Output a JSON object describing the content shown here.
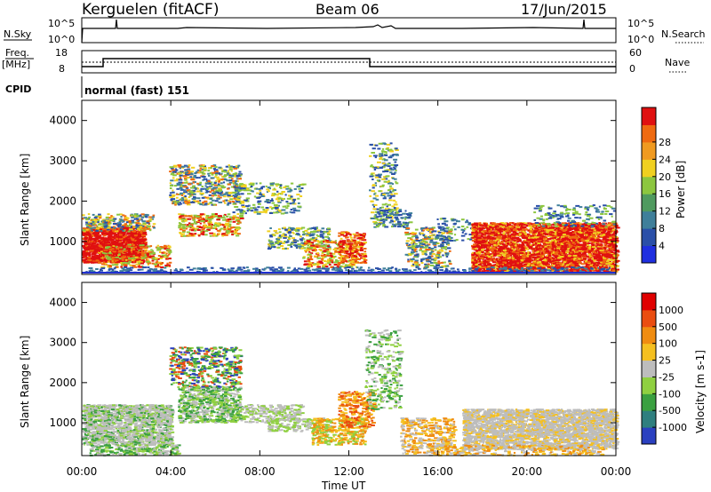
{
  "header": {
    "station": "Kerguelen (fitACF)",
    "beam": "Beam 06",
    "date": "17/Jun/2015"
  },
  "top_panels": {
    "nsky_label": "N.Sky",
    "nsky_ticks": [
      "10^5",
      "10^0"
    ],
    "nsearch_label": "N.Search",
    "nsearch_ticks": [
      "10^5",
      "10^0"
    ],
    "freq_label_1": "Freq.",
    "freq_label_2": "[MHz]",
    "freq_ticks": [
      "18",
      "8"
    ],
    "nave_label": "Nave",
    "nave_ticks": [
      "60",
      "0"
    ],
    "cpid_label": "CPID",
    "cpid_value": "normal (fast) 151"
  },
  "chart_data": [
    {
      "type": "heatmap",
      "title": "",
      "ylabel": "Slant Range [km]",
      "ylim": [
        180,
        4500
      ],
      "yticks": [
        "1000",
        "2000",
        "3000",
        "4000"
      ],
      "colorbar_label": "Power [dB]",
      "colorbar_ticks": [
        "4",
        "8",
        "12",
        "16",
        "20",
        "24",
        "28"
      ],
      "colorbar_colors": [
        "#1f2fe0",
        "#2a4fa8",
        "#3f7f9a",
        "#4f9a5f",
        "#8cc63f",
        "#f0d020",
        "#f09a20",
        "#ef6a10",
        "#e01010"
      ]
    },
    {
      "type": "heatmap",
      "title": "",
      "ylabel": "Slant Range [km]",
      "ylim": [
        180,
        4500
      ],
      "yticks": [
        "1000",
        "2000",
        "3000",
        "4000"
      ],
      "xlabel": "Time UT",
      "xticks": [
        "00:00",
        "04:00",
        "08:00",
        "12:00",
        "16:00",
        "20:00",
        "00:00"
      ],
      "colorbar_label": "Velocity [m s-1]",
      "colorbar_ticks": [
        "1000",
        "500",
        "100",
        "25",
        "-25",
        "-100",
        "-500",
        "-1000"
      ],
      "colorbar_colors": [
        "#2a40c0",
        "#2f7f7f",
        "#3aa040",
        "#8fd040",
        "#bdbdbd",
        "#f5c020",
        "#f08c10",
        "#ea4d10",
        "#e00000"
      ]
    }
  ]
}
